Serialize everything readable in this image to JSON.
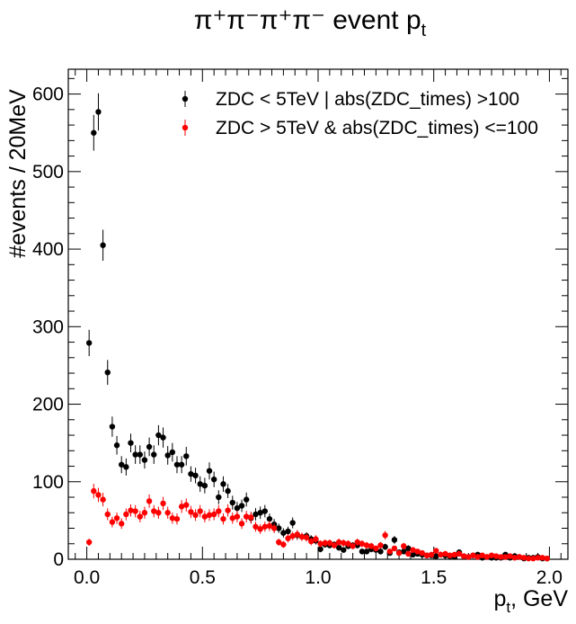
{
  "chart_data": {
    "type": "scatter",
    "title": "π⁺π⁻π⁺π⁻ event p",
    "title_subscript": "t",
    "xlabel": "p",
    "xlabel_subscript": "t",
    "xlabel_suffix": ", GeV",
    "ylabel": "#events / 20MeV",
    "xlim": [
      -0.08,
      2.08
    ],
    "ylim": [
      0,
      632
    ],
    "x_ticks": [
      0.0,
      0.5,
      1.0,
      1.5,
      2.0
    ],
    "x_tick_labels": [
      "0.0",
      "0.5",
      "1.0",
      "1.5",
      "2.0"
    ],
    "y_ticks": [
      0,
      100,
      200,
      300,
      400,
      500,
      600
    ],
    "y_tick_labels": [
      "0",
      "100",
      "200",
      "300",
      "400",
      "500",
      "600"
    ],
    "grid": false,
    "legend_position": "top-right",
    "series": [
      {
        "name": "ZDC < 5TeV | abs(ZDC_times) >100",
        "color": "#000000",
        "x": [
          0.01,
          0.03,
          0.05,
          0.07,
          0.09,
          0.11,
          0.13,
          0.15,
          0.17,
          0.19,
          0.21,
          0.23,
          0.25,
          0.27,
          0.29,
          0.31,
          0.33,
          0.35,
          0.37,
          0.39,
          0.41,
          0.43,
          0.45,
          0.47,
          0.49,
          0.51,
          0.53,
          0.55,
          0.57,
          0.59,
          0.61,
          0.63,
          0.65,
          0.67,
          0.69,
          0.71,
          0.73,
          0.75,
          0.77,
          0.79,
          0.81,
          0.83,
          0.85,
          0.87,
          0.89,
          0.91,
          0.93,
          0.95,
          0.97,
          0.99,
          1.01,
          1.03,
          1.05,
          1.07,
          1.09,
          1.11,
          1.13,
          1.15,
          1.17,
          1.19,
          1.21,
          1.23,
          1.25,
          1.27,
          1.29,
          1.31,
          1.33,
          1.35,
          1.37,
          1.39,
          1.41,
          1.43,
          1.45,
          1.47,
          1.49,
          1.51,
          1.53,
          1.55,
          1.57,
          1.59,
          1.61,
          1.63,
          1.65,
          1.67,
          1.69,
          1.71,
          1.73,
          1.75,
          1.77,
          1.79,
          1.81,
          1.83,
          1.85,
          1.87,
          1.89,
          1.91,
          1.93,
          1.95,
          1.97,
          1.99
        ],
        "y": [
          279,
          550,
          577,
          405,
          241,
          171,
          147,
          122,
          119,
          150,
          135,
          135,
          128,
          145,
          135,
          160,
          157,
          134,
          138,
          122,
          122,
          133,
          110,
          108,
          97,
          95,
          114,
          103,
          80,
          97,
          88,
          73,
          66,
          69,
          77,
          53,
          58,
          60,
          62,
          52,
          45,
          40,
          34,
          36,
          47,
          31,
          29,
          30,
          26,
          24,
          13,
          19,
          18,
          19,
          15,
          12,
          17,
          18,
          18,
          10,
          10,
          13,
          12,
          10,
          16,
          8,
          25,
          9,
          10,
          14,
          6,
          7,
          6,
          5,
          5,
          4,
          6,
          5,
          4,
          3,
          9,
          4,
          3,
          5,
          6,
          2,
          3,
          2,
          2,
          2,
          6,
          2,
          4,
          3,
          1,
          2,
          2,
          3,
          1,
          1
        ],
        "yerr": [
          17,
          23,
          24,
          20,
          16,
          13,
          12,
          11,
          11,
          12,
          12,
          12,
          11,
          12,
          12,
          13,
          13,
          12,
          12,
          11,
          11,
          12,
          10,
          10,
          10,
          10,
          11,
          10,
          9,
          10,
          9,
          9,
          8,
          8,
          9,
          7,
          8,
          8,
          8,
          7,
          7,
          6,
          6,
          6,
          7,
          6,
          5,
          5,
          5,
          5,
          4,
          4,
          4,
          4,
          4,
          3,
          4,
          4,
          4,
          3,
          3,
          4,
          3,
          3,
          4,
          3,
          5,
          3,
          3,
          4,
          2,
          3,
          2,
          2,
          2,
          2,
          2,
          2,
          2,
          2,
          3,
          2,
          2,
          2,
          2,
          1,
          2,
          1,
          1,
          1,
          2,
          1,
          2,
          2,
          1,
          1,
          1,
          2,
          1,
          1
        ]
      },
      {
        "name": "ZDC > 5TeV & abs(ZDC_times) <=100",
        "color": "#ff0000",
        "x": [
          0.01,
          0.03,
          0.05,
          0.07,
          0.09,
          0.11,
          0.13,
          0.15,
          0.17,
          0.19,
          0.21,
          0.23,
          0.25,
          0.27,
          0.29,
          0.31,
          0.33,
          0.35,
          0.37,
          0.39,
          0.41,
          0.43,
          0.45,
          0.47,
          0.49,
          0.51,
          0.53,
          0.55,
          0.57,
          0.59,
          0.61,
          0.63,
          0.65,
          0.67,
          0.69,
          0.71,
          0.73,
          0.75,
          0.77,
          0.79,
          0.81,
          0.83,
          0.85,
          0.87,
          0.89,
          0.91,
          0.93,
          0.95,
          0.97,
          0.99,
          1.01,
          1.03,
          1.05,
          1.07,
          1.09,
          1.11,
          1.13,
          1.15,
          1.17,
          1.19,
          1.21,
          1.23,
          1.25,
          1.27,
          1.29,
          1.31,
          1.33,
          1.35,
          1.37,
          1.39,
          1.41,
          1.43,
          1.45,
          1.47,
          1.49,
          1.51,
          1.53,
          1.55,
          1.57,
          1.59,
          1.61,
          1.63,
          1.65,
          1.67,
          1.69,
          1.71,
          1.73,
          1.75,
          1.77,
          1.79,
          1.81,
          1.83,
          1.85,
          1.87,
          1.89,
          1.91,
          1.93,
          1.95,
          1.97,
          1.99
        ],
        "y": [
          22,
          88,
          83,
          77,
          58,
          48,
          53,
          46,
          58,
          63,
          62,
          55,
          60,
          75,
          62,
          60,
          72,
          60,
          53,
          52,
          68,
          70,
          61,
          57,
          62,
          55,
          57,
          58,
          62,
          52,
          63,
          53,
          55,
          46,
          55,
          54,
          42,
          39,
          42,
          43,
          40,
          22,
          19,
          27,
          30,
          32,
          29,
          28,
          23,
          26,
          20,
          21,
          21,
          18,
          22,
          21,
          20,
          17,
          22,
          20,
          18,
          17,
          14,
          18,
          31,
          10,
          14,
          8,
          17,
          7,
          12,
          10,
          8,
          5,
          6,
          11,
          6,
          7,
          5,
          6,
          7,
          4,
          3,
          5,
          3,
          5,
          3,
          5,
          4,
          3,
          3,
          4,
          2,
          3,
          2,
          1,
          1,
          2,
          2,
          1
        ]
      }
    ]
  }
}
